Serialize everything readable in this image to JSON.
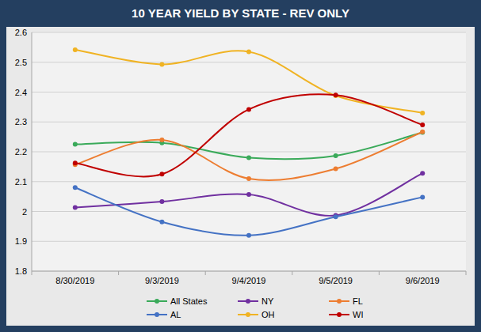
{
  "chart_data": {
    "type": "line",
    "title": "10 YEAR YIELD BY STATE - REV ONLY",
    "categories": [
      "8/30/2019",
      "9/3/2019",
      "9/4/2019",
      "9/5/2019",
      "9/6/2019"
    ],
    "series": [
      {
        "name": "All States",
        "color": "#3aaa5a",
        "values": [
          2.225,
          2.23,
          2.18,
          2.187,
          2.265
        ]
      },
      {
        "name": "NY",
        "color": "#7030a0",
        "values": [
          2.013,
          2.033,
          2.057,
          1.987,
          2.128
        ]
      },
      {
        "name": "FL",
        "color": "#ed7d31",
        "values": [
          2.157,
          2.24,
          2.11,
          2.143,
          2.267
        ]
      },
      {
        "name": "AL",
        "color": "#4472c4",
        "values": [
          2.08,
          1.965,
          1.92,
          1.982,
          2.048
        ]
      },
      {
        "name": "OH",
        "color": "#f0b323",
        "values": [
          2.542,
          2.493,
          2.535,
          2.388,
          2.33
        ]
      },
      {
        "name": "WI",
        "color": "#c00000",
        "values": [
          2.162,
          2.125,
          2.342,
          2.39,
          2.29
        ]
      }
    ],
    "ylim": [
      1.8,
      2.6
    ],
    "yticks": [
      1.8,
      1.9,
      2,
      2.1,
      2.2,
      2.3,
      2.4,
      2.5,
      2.6
    ],
    "grid": true,
    "legend": "bottom",
    "marker": "circle",
    "line_style": "smooth"
  }
}
